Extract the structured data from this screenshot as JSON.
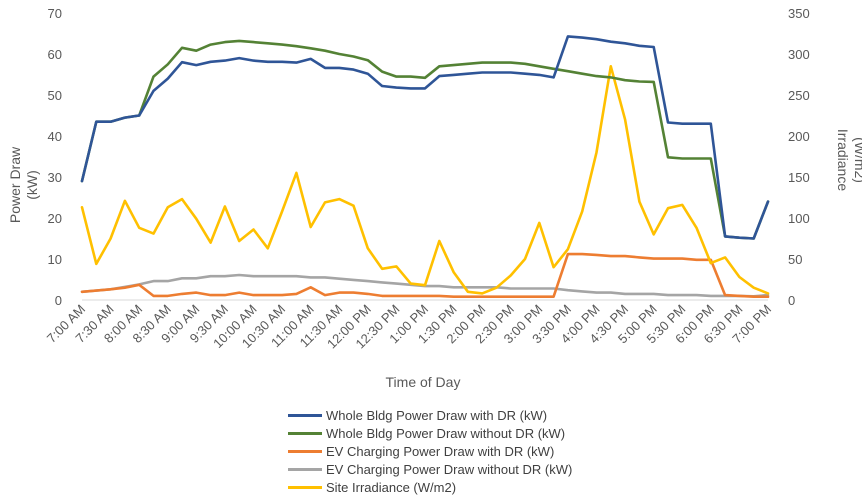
{
  "chart_data": {
    "type": "line",
    "title": "",
    "xlabel": "Time of Day",
    "ylabel_left": [
      "Power Draw",
      "(kW)"
    ],
    "ylabel_right": [
      "Irradiance",
      "(W/m2)"
    ],
    "ylim_left": [
      0,
      70
    ],
    "ylim_right": [
      0,
      350
    ],
    "yticks_left": [
      "0",
      "10",
      "20",
      "30",
      "40",
      "50",
      "60",
      "70"
    ],
    "yticks_right": [
      "0",
      "50",
      "100",
      "150",
      "200",
      "250",
      "300",
      "350"
    ],
    "grid": false,
    "legend_position": "bottom",
    "x_tick_labels": [
      "7:00 AM",
      "7:30 AM",
      "8:00 AM",
      "8:30 AM",
      "9:00 AM",
      "9:30 AM",
      "10:00 AM",
      "10:30 AM",
      "11:00 AM",
      "11:30 AM",
      "12:00 PM",
      "12:30 PM",
      "1:00 PM",
      "1:30 PM",
      "2:00 PM",
      "2:30 PM",
      "3:00 PM",
      "3:30 PM",
      "4:00 PM",
      "4:30 PM",
      "5:00 PM",
      "5:30 PM",
      "6:00 PM",
      "6:30 PM",
      "7:00 PM"
    ],
    "x": [
      "7:00 AM",
      "7:15 AM",
      "7:30 AM",
      "7:45 AM",
      "8:00 AM",
      "8:15 AM",
      "8:30 AM",
      "8:45 AM",
      "9:00 AM",
      "9:15 AM",
      "9:30 AM",
      "9:45 AM",
      "10:00 AM",
      "10:15 AM",
      "10:30 AM",
      "10:45 AM",
      "11:00 AM",
      "11:15 AM",
      "11:30 AM",
      "11:45 AM",
      "12:00 PM",
      "12:15 PM",
      "12:30 PM",
      "12:45 PM",
      "1:00 PM",
      "1:15 PM",
      "1:30 PM",
      "1:45 PM",
      "2:00 PM",
      "2:15 PM",
      "2:30 PM",
      "2:45 PM",
      "3:00 PM",
      "3:15 PM",
      "3:30 PM",
      "3:45 PM",
      "4:00 PM",
      "4:15 PM",
      "4:30 PM",
      "4:45 PM",
      "5:00 PM",
      "5:15 PM",
      "5:30 PM",
      "5:45 PM",
      "6:00 PM",
      "6:15 PM",
      "6:30 PM",
      "6:45 PM",
      "7:00 PM"
    ],
    "series": [
      {
        "name": "Whole Bldg Power Draw with DR (kW)",
        "axis": "left",
        "color": "#2f5597",
        "values": [
          29,
          43.5,
          43.5,
          44.5,
          45,
          51,
          54,
          58,
          57.3,
          58.1,
          58.4,
          59,
          58.4,
          58.1,
          58.1,
          57.9,
          58.8,
          56.6,
          56.6,
          56.2,
          55.2,
          52.2,
          51.8,
          51.6,
          51.6,
          54.6,
          54.9,
          55.2,
          55.5,
          55.5,
          55.5,
          55.2,
          54.9,
          54.3,
          64.3,
          64,
          63.6,
          63,
          62.6,
          62,
          61.7,
          43.3,
          43,
          43,
          43,
          15.5,
          15.2,
          15,
          24
        ]
      },
      {
        "name": "Whole Bldg Power Draw without DR (kW)",
        "axis": "left",
        "color": "#548235",
        "values": [
          29,
          43.5,
          43.5,
          44.5,
          45,
          54.5,
          57.5,
          61.5,
          60.8,
          62.3,
          62.9,
          63.2,
          62.9,
          62.6,
          62.3,
          61.9,
          61.4,
          60.8,
          60,
          59.4,
          58.5,
          55.7,
          54.5,
          54.5,
          54.2,
          57,
          57.3,
          57.6,
          57.9,
          57.9,
          57.9,
          57.6,
          57,
          56.4,
          55.8,
          55.2,
          54.6,
          54.3,
          53.6,
          53.3,
          53.2,
          34.8,
          34.5,
          34.5,
          34.5,
          15.5,
          15.2,
          15,
          24
        ]
      },
      {
        "name": "EV Charging Power Draw with DR (kW)",
        "axis": "left",
        "color": "#ed7d31",
        "values": [
          2,
          2.3,
          2.6,
          3,
          3.7,
          1,
          1,
          1.5,
          1.8,
          1.2,
          1.2,
          1.8,
          1.2,
          1.2,
          1.2,
          1.5,
          3.1,
          1.2,
          1.8,
          1.8,
          1.5,
          1,
          1,
          1,
          1,
          1,
          0.8,
          0.8,
          0.8,
          0.8,
          0.8,
          0.8,
          0.8,
          0.8,
          11.2,
          11.2,
          11,
          10.7,
          10.7,
          10.4,
          10.1,
          10.1,
          10.1,
          9.8,
          9.8,
          1.2,
          1,
          0.8,
          0.8
        ]
      },
      {
        "name": "EV Charging Power Draw without DR (kW)",
        "axis": "left",
        "color": "#a5a5a5",
        "values": [
          2,
          2.3,
          2.6,
          3.2,
          3.8,
          4.6,
          4.6,
          5.3,
          5.3,
          5.8,
          5.8,
          6.1,
          5.8,
          5.8,
          5.8,
          5.8,
          5.5,
          5.5,
          5.2,
          4.9,
          4.6,
          4.3,
          4,
          3.7,
          3.4,
          3.4,
          3.1,
          3.1,
          3.1,
          3.1,
          2.8,
          2.8,
          2.8,
          2.8,
          2.4,
          2.1,
          1.8,
          1.8,
          1.5,
          1.5,
          1.5,
          1.2,
          1.2,
          1.2,
          1,
          1,
          1,
          0.9,
          1.2
        ]
      },
      {
        "name": "Site Irradiance (W/m2)",
        "axis": "right",
        "color": "#ffc000",
        "values": [
          113,
          44,
          75,
          121,
          88,
          81,
          113,
          123,
          99,
          70,
          114,
          72,
          86,
          63,
          108,
          155,
          89,
          119,
          123,
          115,
          63,
          38,
          41,
          20,
          18,
          72,
          34,
          10,
          8,
          15,
          30,
          50,
          94,
          40,
          62,
          108,
          180,
          285,
          220,
          120,
          80,
          112,
          116,
          88,
          45,
          52,
          28,
          15,
          8
        ]
      }
    ]
  }
}
